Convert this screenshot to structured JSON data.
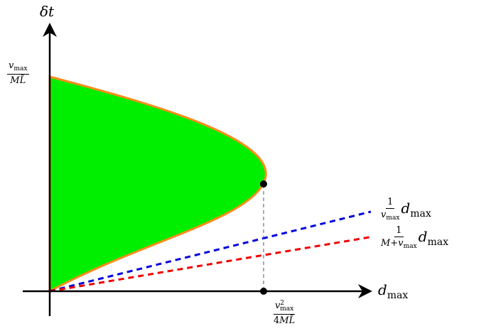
{
  "diagram": {
    "y_axis_label_symbol": "δ",
    "y_axis_label_var": "t",
    "x_axis_label_var": "d",
    "x_axis_label_sub": "max",
    "y_tick": {
      "num_var": "v",
      "num_sub": "max",
      "den_var": "M",
      "den_var2": "L̃"
    },
    "x_tick": {
      "num_var": "v",
      "num_sup": "2",
      "num_sub": "max",
      "den_coef": "4",
      "den_var": "M",
      "den_var2": "L̃"
    },
    "blue_line_label": {
      "num": "1",
      "den_var": "v",
      "den_sub": "max",
      "suffix_var": "d",
      "suffix_sub": "max"
    },
    "red_line_label": {
      "num": "1",
      "den_var1": "M",
      "den_plus": "+",
      "den_var2": "v",
      "den_sub": "max",
      "suffix_var": "d",
      "suffix_sub": "max"
    },
    "colors": {
      "region_fill": "#00ee00",
      "region_border": "#ff8c1a",
      "blue_line": "#0000dd",
      "red_line": "#ee0000",
      "axis": "#000000",
      "guide": "#555555"
    }
  }
}
